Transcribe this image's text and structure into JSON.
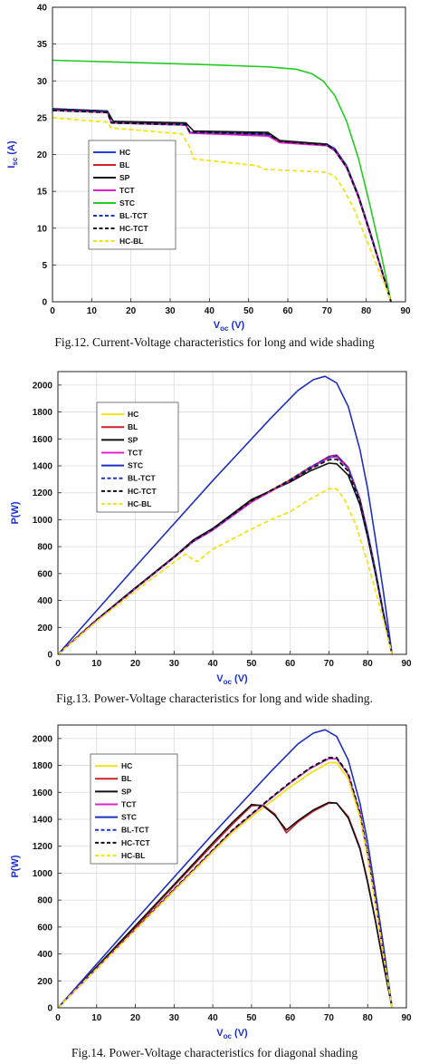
{
  "chart_data": [
    {
      "type": "line",
      "title": "",
      "ylabel_main": "I",
      "ylabel_sub": "sc",
      "ylabel_unit": " (A)",
      "xlabel_main": "V",
      "xlabel_sub": "oc",
      "xlabel_unit": " (V)",
      "xlim": [
        0,
        90
      ],
      "ylim": [
        0,
        40
      ],
      "xticks": [
        0,
        10,
        20,
        30,
        40,
        50,
        60,
        70,
        80,
        90
      ],
      "yticks": [
        0,
        5,
        10,
        15,
        20,
        25,
        30,
        35,
        40
      ],
      "grid": true,
      "legend_position": "center-left",
      "caption": "Fig.12. Current-Voltage characteristics for long and wide shading",
      "series": [
        {
          "name": "HC",
          "color": "#1f3fe0",
          "dash": "solid",
          "x": [
            0,
            14,
            15,
            34,
            35,
            55,
            58,
            70,
            72,
            75,
            78,
            81,
            83,
            85,
            86.3
          ],
          "y": [
            26.2,
            25.9,
            24.4,
            24.1,
            23.0,
            22.8,
            21.8,
            21.4,
            20.8,
            18.5,
            14.5,
            9.5,
            6.0,
            2.5,
            0
          ]
        },
        {
          "name": "BL",
          "color": "#d0202a",
          "dash": "solid",
          "x": [
            0,
            14,
            15,
            34,
            35,
            55,
            58,
            70,
            72,
            75,
            78,
            81,
            83,
            85,
            86.3
          ],
          "y": [
            26.1,
            25.8,
            24.3,
            24.0,
            23.0,
            22.6,
            21.7,
            21.3,
            20.6,
            18.3,
            14.3,
            9.3,
            5.9,
            2.4,
            0
          ]
        },
        {
          "name": "SP",
          "color": "#111111",
          "dash": "solid",
          "x": [
            0,
            14,
            15.5,
            34,
            36,
            55,
            58,
            70,
            72,
            75,
            78,
            81,
            83,
            85,
            86.3
          ],
          "y": [
            26.2,
            25.9,
            24.5,
            24.3,
            23.2,
            23.0,
            21.9,
            21.4,
            20.5,
            18.2,
            14.2,
            9.2,
            5.8,
            2.4,
            0
          ]
        },
        {
          "name": "TCT",
          "color": "#e020d0",
          "dash": "solid",
          "x": [
            0,
            14,
            15,
            34,
            35,
            55,
            58,
            70,
            72,
            75,
            78,
            81,
            83,
            85,
            86.3
          ],
          "y": [
            26.0,
            25.7,
            24.3,
            24.0,
            22.9,
            22.5,
            21.6,
            21.2,
            20.5,
            18.2,
            14.2,
            9.2,
            5.8,
            2.4,
            0
          ]
        },
        {
          "name": "STC",
          "color": "#22cc22",
          "dash": "solid",
          "x": [
            0,
            20,
            40,
            55,
            62,
            66,
            69,
            72,
            75,
            78,
            81,
            84,
            86.3
          ],
          "y": [
            32.8,
            32.5,
            32.2,
            31.9,
            31.6,
            31.0,
            30.0,
            28.0,
            24.5,
            19.5,
            13.0,
            6.0,
            0
          ]
        },
        {
          "name": "BL-TCT",
          "color": "#2233cc",
          "dash": "dashed",
          "x": [
            0,
            14,
            15,
            34,
            35,
            55,
            58,
            70,
            72,
            75,
            78,
            81,
            83,
            85,
            86.3
          ],
          "y": [
            26.1,
            25.8,
            24.3,
            24.0,
            23.0,
            22.7,
            21.8,
            21.3,
            20.6,
            18.3,
            14.3,
            9.3,
            5.9,
            2.4,
            0
          ]
        },
        {
          "name": "HC-TCT",
          "color": "#111111",
          "dash": "dashed",
          "x": [
            0,
            14,
            15,
            34,
            35,
            55,
            58,
            70,
            72,
            75,
            78,
            81,
            83,
            85,
            86.3
          ],
          "y": [
            26.0,
            25.7,
            24.3,
            24.1,
            23.1,
            22.8,
            21.8,
            21.3,
            20.6,
            18.3,
            14.3,
            9.3,
            5.9,
            2.4,
            0
          ]
        },
        {
          "name": "HC-BL",
          "color": "#f2e21a",
          "dash": "dashed",
          "x": [
            0,
            14,
            15,
            33,
            35,
            36,
            52,
            54,
            70,
            72,
            74,
            77,
            80,
            83,
            85,
            86.3
          ],
          "y": [
            25.0,
            24.4,
            23.6,
            22.8,
            21.0,
            19.4,
            18.5,
            18.0,
            17.6,
            17.0,
            15.5,
            12.5,
            8.5,
            4.5,
            2.0,
            0
          ]
        }
      ]
    },
    {
      "type": "line",
      "title": "",
      "ylabel": "P(W)",
      "xlabel_main": "V",
      "xlabel_sub": "oc",
      "xlabel_unit": " (V)",
      "xlim": [
        0,
        90
      ],
      "ylim": [
        0,
        2100
      ],
      "xticks": [
        0,
        10,
        20,
        30,
        40,
        50,
        60,
        70,
        80,
        90
      ],
      "yticks": [
        0,
        200,
        400,
        600,
        800,
        1000,
        1200,
        1400,
        1600,
        1800,
        2000
      ],
      "grid": true,
      "legend_position": "top-left",
      "caption": "Fig.13. Power-Voltage characteristics for long and wide shading.",
      "series": [
        {
          "name": "HC",
          "color": "#f2e21a",
          "dash": "solid",
          "x": [
            0,
            10,
            20,
            30,
            35,
            40,
            50,
            60,
            65,
            70,
            72,
            75,
            78,
            80,
            82,
            84,
            86.3
          ],
          "y": [
            0,
            255,
            490,
            720,
            840,
            930,
            1140,
            1300,
            1390,
            1460,
            1470,
            1380,
            1150,
            900,
            620,
            320,
            0
          ]
        },
        {
          "name": "BL",
          "color": "#d0202a",
          "dash": "solid",
          "x": [
            0,
            10,
            20,
            30,
            35,
            40,
            50,
            60,
            65,
            70,
            72,
            75,
            78,
            80,
            82,
            84,
            86.3
          ],
          "y": [
            0,
            255,
            490,
            720,
            840,
            925,
            1135,
            1295,
            1385,
            1470,
            1480,
            1390,
            1155,
            905,
            625,
            320,
            0
          ]
        },
        {
          "name": "SP",
          "color": "#111111",
          "dash": "solid",
          "x": [
            0,
            10,
            20,
            30,
            35,
            40,
            50,
            60,
            65,
            70,
            72,
            75,
            78,
            80,
            82,
            84,
            86.3
          ],
          "y": [
            0,
            258,
            495,
            725,
            850,
            935,
            1150,
            1280,
            1360,
            1420,
            1415,
            1330,
            1110,
            870,
            600,
            310,
            0
          ]
        },
        {
          "name": "TCT",
          "color": "#e020d0",
          "dash": "solid",
          "x": [
            0,
            10,
            20,
            30,
            35,
            40,
            50,
            60,
            65,
            70,
            72,
            75,
            78,
            80,
            82,
            84,
            86.3
          ],
          "y": [
            0,
            254,
            488,
            718,
            838,
            922,
            1130,
            1290,
            1380,
            1460,
            1468,
            1380,
            1148,
            898,
            618,
            318,
            0
          ]
        },
        {
          "name": "STC",
          "color": "#1f2fc0",
          "dash": "solid",
          "x": [
            0,
            20,
            40,
            55,
            62,
            66,
            69,
            72,
            75,
            78,
            80,
            82,
            84,
            86.3
          ],
          "y": [
            0,
            650,
            1290,
            1755,
            1960,
            2040,
            2065,
            2015,
            1840,
            1520,
            1230,
            860,
            480,
            0
          ]
        },
        {
          "name": "BL-TCT",
          "color": "#2233cc",
          "dash": "dashed",
          "x": [
            0,
            10,
            20,
            30,
            35,
            40,
            50,
            60,
            65,
            70,
            72,
            75,
            78,
            80,
            82,
            84,
            86.3
          ],
          "y": [
            0,
            255,
            490,
            720,
            840,
            928,
            1138,
            1298,
            1388,
            1465,
            1475,
            1385,
            1152,
            902,
            622,
            320,
            0
          ]
        },
        {
          "name": "HC-TCT",
          "color": "#111111",
          "dash": "dashed",
          "x": [
            0,
            10,
            20,
            30,
            35,
            40,
            50,
            60,
            65,
            70,
            72,
            75,
            78,
            80,
            82,
            84,
            86.3
          ],
          "y": [
            0,
            256,
            492,
            722,
            845,
            932,
            1142,
            1290,
            1375,
            1445,
            1450,
            1360,
            1135,
            890,
            612,
            315,
            0
          ]
        },
        {
          "name": "HC-BL",
          "color": "#f2e21a",
          "dash": "dashed",
          "x": [
            0,
            10,
            20,
            30,
            33,
            35,
            36,
            40,
            50,
            55,
            60,
            65,
            70,
            72,
            74,
            77,
            80,
            83,
            86.3
          ],
          "y": [
            0,
            245,
            470,
            685,
            745,
            700,
            690,
            780,
            930,
            1000,
            1060,
            1150,
            1230,
            1230,
            1150,
            960,
            680,
            370,
            0
          ]
        }
      ]
    },
    {
      "type": "line",
      "title": "",
      "ylabel": "P(W)",
      "xlabel_main": "V",
      "xlabel_sub": "oc",
      "xlabel_unit": " (V)",
      "xlim": [
        0,
        90
      ],
      "ylim": [
        0,
        2100
      ],
      "xticks": [
        0,
        10,
        20,
        30,
        40,
        50,
        60,
        70,
        80,
        90
      ],
      "yticks": [
        0,
        200,
        400,
        600,
        800,
        1000,
        1200,
        1400,
        1600,
        1800,
        2000
      ],
      "grid": true,
      "legend_position": "top-left",
      "caption": "Fig.14. Power-Voltage characteristics for diagonal shading",
      "series": [
        {
          "name": "HC",
          "color": "#f2e21a",
          "dash": "solid",
          "x": [
            0,
            10,
            20,
            30,
            40,
            45,
            50,
            55,
            60,
            65,
            70,
            72,
            75,
            78,
            80,
            82,
            84,
            86.3
          ],
          "y": [
            0,
            290,
            580,
            870,
            1160,
            1300,
            1420,
            1530,
            1640,
            1740,
            1820,
            1820,
            1700,
            1420,
            1120,
            780,
            410,
            0
          ]
        },
        {
          "name": "BL",
          "color": "#d0202a",
          "dash": "solid",
          "x": [
            0,
            10,
            20,
            30,
            40,
            45,
            50,
            53,
            56,
            59,
            62,
            66,
            70,
            72,
            75,
            78,
            80,
            82,
            84,
            86.3
          ],
          "y": [
            0,
            300,
            600,
            905,
            1210,
            1360,
            1500,
            1505,
            1440,
            1300,
            1380,
            1460,
            1520,
            1520,
            1420,
            1190,
            940,
            650,
            340,
            0
          ]
        },
        {
          "name": "SP",
          "color": "#111111",
          "dash": "solid",
          "x": [
            0,
            10,
            20,
            30,
            40,
            45,
            50,
            53,
            56,
            59,
            62,
            66,
            70,
            72,
            75,
            78,
            80,
            82,
            84,
            86.3
          ],
          "y": [
            0,
            305,
            610,
            915,
            1225,
            1375,
            1510,
            1500,
            1430,
            1320,
            1390,
            1470,
            1525,
            1520,
            1410,
            1180,
            930,
            645,
            335,
            0
          ]
        },
        {
          "name": "TCT",
          "color": "#e020d0",
          "dash": "solid",
          "x": [
            0,
            10,
            20,
            30,
            40,
            45,
            50,
            55,
            60,
            65,
            70,
            72,
            75,
            78,
            80,
            82,
            84,
            86.3
          ],
          "y": [
            0,
            292,
            585,
            878,
            1170,
            1315,
            1435,
            1555,
            1670,
            1775,
            1850,
            1850,
            1730,
            1445,
            1140,
            795,
            420,
            0
          ]
        },
        {
          "name": "STC",
          "color": "#1f2fc0",
          "dash": "solid",
          "x": [
            0,
            20,
            40,
            55,
            62,
            66,
            69,
            72,
            75,
            78,
            80,
            82,
            84,
            86.3
          ],
          "y": [
            0,
            650,
            1290,
            1755,
            1960,
            2040,
            2065,
            2015,
            1840,
            1520,
            1230,
            860,
            480,
            0
          ]
        },
        {
          "name": "BL-TCT",
          "color": "#2233cc",
          "dash": "dashed",
          "x": [
            0,
            10,
            20,
            30,
            40,
            45,
            50,
            55,
            60,
            65,
            70,
            72,
            75,
            78,
            80,
            82,
            84,
            86.3
          ],
          "y": [
            0,
            292,
            585,
            878,
            1170,
            1315,
            1438,
            1558,
            1672,
            1778,
            1855,
            1855,
            1735,
            1448,
            1142,
            796,
            421,
            0
          ]
        },
        {
          "name": "HC-TCT",
          "color": "#111111",
          "dash": "dashed",
          "x": [
            0,
            10,
            20,
            30,
            40,
            45,
            50,
            55,
            60,
            65,
            70,
            72,
            75,
            78,
            80,
            82,
            84,
            86.3
          ],
          "y": [
            0,
            293,
            586,
            880,
            1172,
            1318,
            1440,
            1560,
            1675,
            1780,
            1858,
            1858,
            1738,
            1450,
            1144,
            798,
            422,
            0
          ]
        },
        {
          "name": "HC-BL",
          "color": "#f2e21a",
          "dash": "dashed",
          "x": [
            0,
            10,
            20,
            30,
            40,
            45,
            50,
            55,
            60,
            65,
            70,
            72,
            75,
            78,
            80,
            82,
            84,
            86.3
          ],
          "y": [
            0,
            290,
            580,
            870,
            1160,
            1300,
            1420,
            1530,
            1640,
            1740,
            1820,
            1820,
            1700,
            1420,
            1120,
            780,
            410,
            0
          ]
        }
      ]
    }
  ]
}
